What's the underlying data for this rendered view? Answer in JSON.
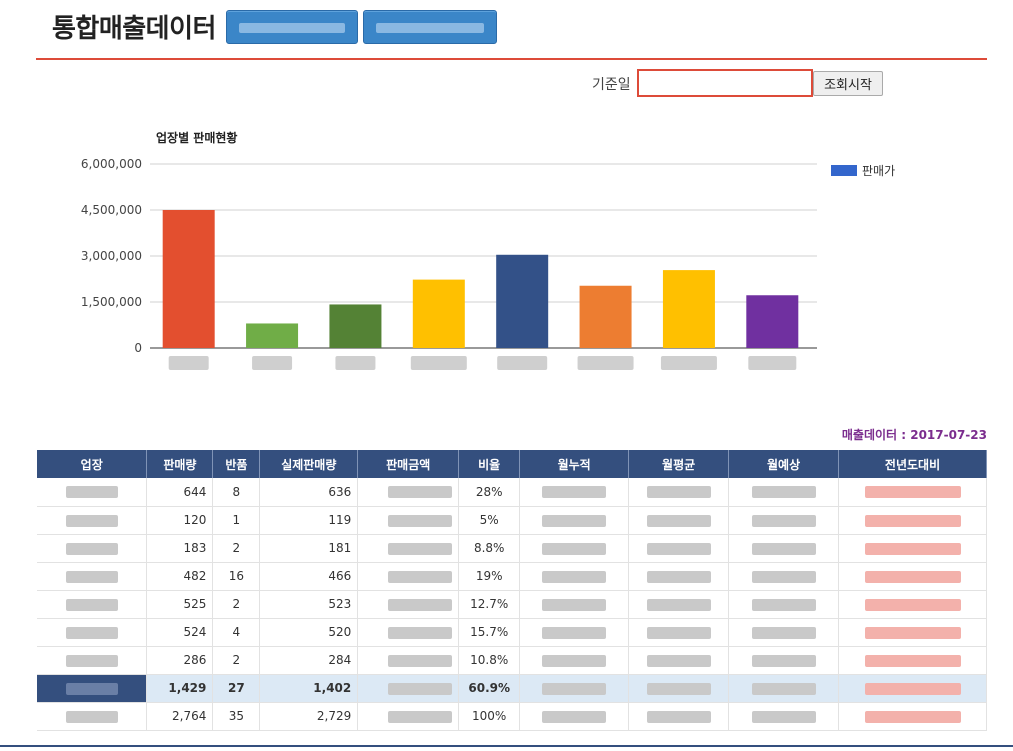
{
  "header": {
    "title": "통합매출데이터"
  },
  "filter": {
    "date_label": "기준일",
    "date_value": "",
    "search_label": "조회시작"
  },
  "chart_data": {
    "type": "bar",
    "title": "업장별 판매현황",
    "series": [
      {
        "name": "판매가",
        "values": [
          4500000,
          800000,
          1420000,
          2230000,
          3040000,
          2030000,
          2540000,
          1720000
        ]
      }
    ],
    "colors": [
      "#e34f2f",
      "#70ad47",
      "#548235",
      "#ffc000",
      "#335188",
      "#ed7d31",
      "#ffc000",
      "#7030a0"
    ],
    "ylim": [
      0,
      6000000
    ],
    "yticks": [
      "0",
      "1,500,000",
      "3,000,000",
      "4,500,000",
      "6,000,000"
    ],
    "legend_position": "right",
    "grid": true
  },
  "legend": {
    "label": "판매가",
    "color": "#3366cc"
  },
  "table": {
    "data_date": "매출데이터 : 2017-07-23",
    "headers": [
      "업장",
      "판매량",
      "반품",
      "실제판매량",
      "판매금액",
      "비율",
      "월누적",
      "월평균",
      "월예상",
      "전년도대비"
    ],
    "rows": [
      {
        "sales": "644",
        "returns": "8",
        "net": "636",
        "ratio": "28%"
      },
      {
        "sales": "120",
        "returns": "1",
        "net": "119",
        "ratio": "5%"
      },
      {
        "sales": "183",
        "returns": "2",
        "net": "181",
        "ratio": "8.8%"
      },
      {
        "sales": "482",
        "returns": "16",
        "net": "466",
        "ratio": "19%"
      },
      {
        "sales": "525",
        "returns": "2",
        "net": "523",
        "ratio": "12.7%"
      },
      {
        "sales": "524",
        "returns": "4",
        "net": "520",
        "ratio": "15.7%"
      },
      {
        "sales": "286",
        "returns": "2",
        "net": "284",
        "ratio": "10.8%"
      }
    ],
    "subtotal": {
      "sales": "1,429",
      "returns": "27",
      "net": "1,402",
      "ratio": "60.9%"
    },
    "total": {
      "sales": "2,764",
      "returns": "35",
      "net": "2,729",
      "ratio": "100%"
    }
  }
}
